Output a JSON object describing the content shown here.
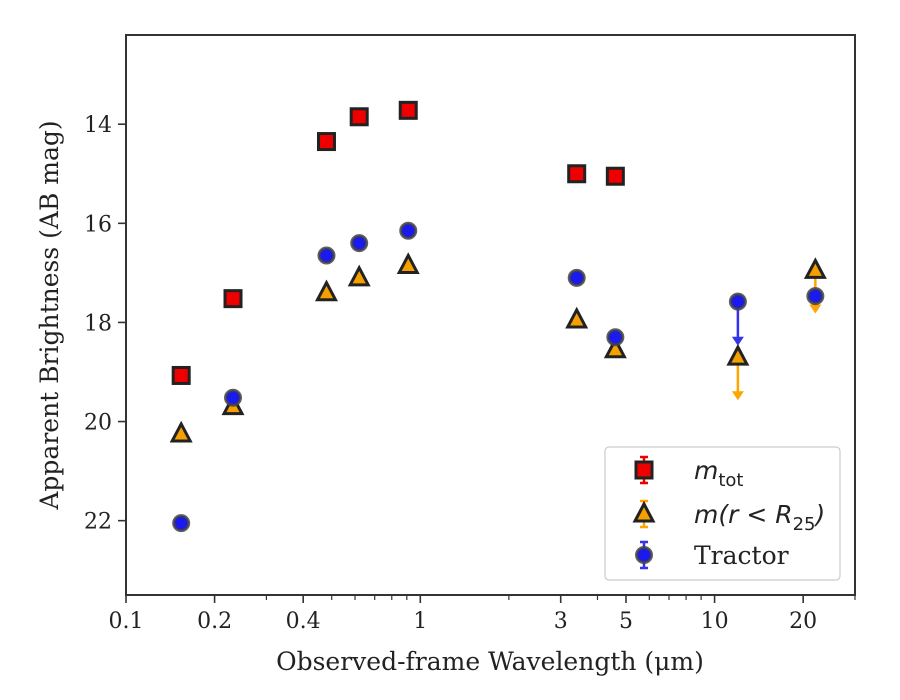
{
  "chart_data": {
    "type": "scatter",
    "xscale": "log",
    "xlim": [
      0.1,
      30
    ],
    "ylim": [
      23.5,
      12.2
    ],
    "y_inverted": true,
    "xlabel": "Observed-frame Wavelength (μm)",
    "ylabel": "Apparent Brightness (AB mag)",
    "x_ticks": [
      {
        "value": 0.1,
        "label": "0.1"
      },
      {
        "value": 0.2,
        "label": "0.2"
      },
      {
        "value": 0.4,
        "label": "0.4"
      },
      {
        "value": 1,
        "label": "1"
      },
      {
        "value": 3,
        "label": "3"
      },
      {
        "value": 5,
        "label": "5"
      },
      {
        "value": 10,
        "label": "10"
      },
      {
        "value": 20,
        "label": "20"
      }
    ],
    "x_minor_ticks": [
      0.3,
      0.5,
      0.6,
      0.7,
      0.8,
      0.9,
      2,
      4,
      6,
      7,
      8,
      9,
      30
    ],
    "y_ticks": [
      {
        "value": 14,
        "label": "14"
      },
      {
        "value": 16,
        "label": "16"
      },
      {
        "value": 18,
        "label": "18"
      },
      {
        "value": 20,
        "label": "20"
      },
      {
        "value": 22,
        "label": "22"
      }
    ],
    "grid": false,
    "legend_position": "bottom-right",
    "series": [
      {
        "name": "m_tot",
        "legend_main": "m",
        "legend_sub": "tot",
        "marker": "square",
        "face": "#ee0000",
        "edge": "#222222",
        "errcolor": "#ee0000",
        "points": [
          {
            "x": 0.154,
            "y": 19.07
          },
          {
            "x": 0.231,
            "y": 17.52
          },
          {
            "x": 0.48,
            "y": 14.35
          },
          {
            "x": 0.62,
            "y": 13.85
          },
          {
            "x": 0.91,
            "y": 13.72
          },
          {
            "x": 3.4,
            "y": 15.0
          },
          {
            "x": 4.6,
            "y": 15.05
          }
        ]
      },
      {
        "name": "m(r<R25)",
        "legend_main": "m(r < R",
        "legend_sub": "25",
        "legend_close": ")",
        "marker": "triangle",
        "face": "#f5a000",
        "edge": "#222222",
        "errcolor": "#ffa500",
        "points": [
          {
            "x": 0.154,
            "y": 20.25
          },
          {
            "x": 0.231,
            "y": 19.7
          },
          {
            "x": 0.48,
            "y": 17.4
          },
          {
            "x": 0.62,
            "y": 17.1
          },
          {
            "x": 0.91,
            "y": 16.85
          },
          {
            "x": 3.4,
            "y": 17.95
          },
          {
            "x": 4.6,
            "y": 18.55
          },
          {
            "x": 12.0,
            "y": 18.7,
            "upper_limit_to": 19.55
          },
          {
            "x": 22.0,
            "y": 16.95,
            "upper_limit_to": 17.8
          }
        ]
      },
      {
        "name": "Tractor",
        "legend_main": "Tractor",
        "marker": "circle",
        "face": "#1a1aee",
        "edge": "#444444",
        "errcolor": "#3333ee",
        "points": [
          {
            "x": 0.154,
            "y": 22.05
          },
          {
            "x": 0.231,
            "y": 19.52
          },
          {
            "x": 0.48,
            "y": 16.65
          },
          {
            "x": 0.62,
            "y": 16.4
          },
          {
            "x": 0.91,
            "y": 16.15
          },
          {
            "x": 3.4,
            "y": 17.1
          },
          {
            "x": 4.6,
            "y": 18.3
          },
          {
            "x": 12.0,
            "y": 17.58,
            "upper_limit_to": 18.45
          },
          {
            "x": 22.0,
            "y": 17.47
          }
        ]
      }
    ]
  }
}
